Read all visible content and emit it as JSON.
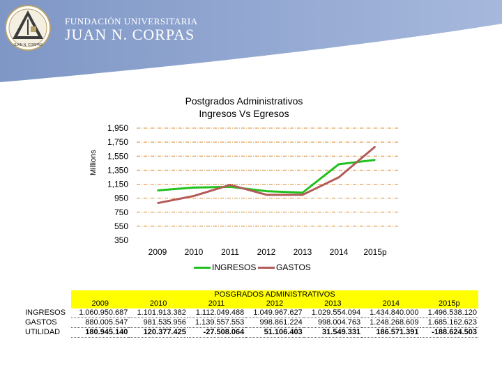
{
  "brand": {
    "line1": "FUNDACIÓN UNIVERSITARIA",
    "line2": "JUAN N. CORPAS",
    "logo_text": "JUAN N. CORPAS",
    "colors": {
      "band": "#8fa6d1",
      "logo_gold": "#b8a26a"
    }
  },
  "chart_data": {
    "type": "line",
    "title": "Postgrados Administrativos",
    "subtitle": "Ingresos Vs Egresos",
    "ylabel": "Millions",
    "xlabel": "",
    "categories": [
      "2009",
      "2010",
      "2011",
      "2012",
      "2013",
      "2014",
      "2015p"
    ],
    "y_ticks": [
      "1,950",
      "1,750",
      "1,550",
      "1,350",
      "1,150",
      "950",
      "750",
      "550",
      "350"
    ],
    "ylim": [
      350,
      1950
    ],
    "y_step": 200,
    "grid": true,
    "legend_position": "bottom",
    "series": [
      {
        "name": "INGRESOS",
        "color": "#22c01e",
        "values": [
          1060.950687,
          1101.913382,
          1112.049488,
          1049.967627,
          1029.554094,
          1434.84,
          1496.53812
        ]
      },
      {
        "name": "GASTOS",
        "color": "#b25b58",
        "values": [
          880.005547,
          981.535956,
          1139.557553,
          998.861224,
          998.004763,
          1248.268609,
          1685.162623
        ]
      }
    ]
  },
  "table": {
    "title": "POSGRADOS ADMINISTRATIVOS",
    "years": [
      "2009",
      "2010",
      "2011",
      "2012",
      "2013",
      "2014",
      "2015p"
    ],
    "rows": [
      {
        "label": "INGRESOS",
        "values": [
          "1.060.950.687",
          "1.101.913.382",
          "1.112.049.488",
          "1.049.967.627",
          "1.029.554.094",
          "1.434.840.000",
          "1.496.538.120"
        ]
      },
      {
        "label": "GASTOS",
        "values": [
          "880.005.547",
          "981.535.956",
          "1.139.557.553",
          "998.861.224",
          "998.004.763",
          "1.248.268.609",
          "1.685.162.623"
        ]
      },
      {
        "label": "UTILIDAD",
        "values": [
          "180.945.140",
          "120.377.425",
          "-27.508.064",
          "51.106.403",
          "31.549.331",
          "186.571.391",
          "-188.624.503"
        ]
      }
    ]
  }
}
